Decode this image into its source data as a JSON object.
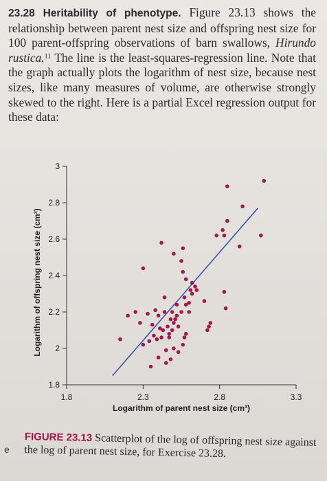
{
  "problem": {
    "number": "23.28",
    "title": "Heritability of phenotype.",
    "text_1": "Figure 23.13 shows the relationship between parent nest size and offspring nest size for 100 parent-offspring observations of barn swallows, ",
    "species": "Hirundo rustica.",
    "footnote": "11",
    "text_2": " The line is the least-squares-regression line. Note that the graph actually plots the logarithm of nest size, because nest sizes, like many measures of volume, are otherwise strongly skewed to the right. Here is a partial Excel regression output for these data:"
  },
  "figure": {
    "label": "FIGURE 23.13",
    "caption": " Scatterplot of the log of offspring nest size against the log of parent nest size, for Exercise 23.28.",
    "margin_mark": "e"
  },
  "colors": {
    "points": "#a3174a",
    "line": "#3a55b3",
    "caption_head": "#a3174a"
  },
  "chart_data": {
    "type": "scatter",
    "xlabel": "Logarithm of parent nest size (cm³)",
    "ylabel": "Logarithm of offspring nest size (cm³)",
    "xlim": [
      1.8,
      3.3
    ],
    "ylim": [
      1.8,
      3.0
    ],
    "x_ticks": [
      "1.8",
      "2.3",
      "2.8",
      "3.3"
    ],
    "y_ticks": [
      "1.8",
      "2",
      "2.2",
      "2.4",
      "2.6",
      "2.8",
      "3"
    ],
    "regression_line": {
      "x": [
        2.1,
        3.05
      ],
      "y": [
        1.85,
        2.77
      ]
    },
    "points": [
      [
        2.35,
        1.9
      ],
      [
        2.4,
        1.95
      ],
      [
        2.45,
        1.99
      ],
      [
        2.3,
        2.02
      ],
      [
        2.34,
        2.04
      ],
      [
        2.39,
        2.05
      ],
      [
        2.37,
        2.07
      ],
      [
        2.42,
        2.06
      ],
      [
        2.47,
        2.08
      ],
      [
        2.43,
        2.1
      ],
      [
        2.46,
        2.12
      ],
      [
        2.5,
        2.14
      ],
      [
        2.48,
        2.16
      ],
      [
        2.52,
        2.18
      ],
      [
        2.55,
        2.2
      ],
      [
        2.58,
        2.24
      ],
      [
        2.52,
        2.24
      ],
      [
        2.6,
        2.25
      ],
      [
        2.44,
        2.28
      ],
      [
        2.38,
        2.21
      ],
      [
        2.33,
        2.19
      ],
      [
        2.4,
        2.18
      ],
      [
        2.62,
        2.3
      ],
      [
        2.65,
        2.32
      ],
      [
        2.64,
        2.34
      ],
      [
        2.58,
        2.38
      ],
      [
        2.62,
        2.36
      ],
      [
        2.56,
        2.42
      ],
      [
        2.3,
        2.44
      ],
      [
        2.55,
        2.48
      ],
      [
        2.5,
        2.52
      ],
      [
        2.56,
        2.55
      ],
      [
        2.42,
        2.58
      ],
      [
        2.2,
        2.18
      ],
      [
        2.25,
        2.2
      ],
      [
        2.15,
        2.05
      ],
      [
        2.28,
        2.14
      ],
      [
        2.5,
        2.0
      ],
      [
        2.53,
        1.98
      ],
      [
        2.56,
        2.02
      ],
      [
        2.57,
        2.06
      ],
      [
        2.58,
        2.08
      ],
      [
        2.48,
        1.94
      ],
      [
        2.45,
        1.92
      ],
      [
        2.41,
        2.11
      ],
      [
        2.49,
        2.2
      ],
      [
        2.72,
        2.1
      ],
      [
        2.73,
        2.12
      ],
      [
        2.74,
        2.14
      ],
      [
        2.7,
        2.26
      ],
      [
        2.84,
        2.22
      ],
      [
        2.83,
        2.31
      ],
      [
        2.78,
        2.62
      ],
      [
        2.83,
        2.62
      ],
      [
        2.82,
        2.65
      ],
      [
        2.85,
        2.7
      ],
      [
        2.95,
        2.78
      ],
      [
        2.93,
        2.56
      ],
      [
        3.07,
        2.62
      ],
      [
        3.09,
        2.92
      ],
      [
        2.85,
        2.89
      ],
      [
        2.36,
        2.13
      ],
      [
        2.44,
        2.2
      ],
      [
        2.47,
        2.06
      ],
      [
        2.49,
        2.1
      ],
      [
        2.51,
        2.16
      ],
      [
        2.53,
        2.12
      ],
      [
        2.57,
        2.28
      ],
      [
        2.6,
        2.2
      ],
      [
        2.61,
        2.32
      ]
    ]
  }
}
